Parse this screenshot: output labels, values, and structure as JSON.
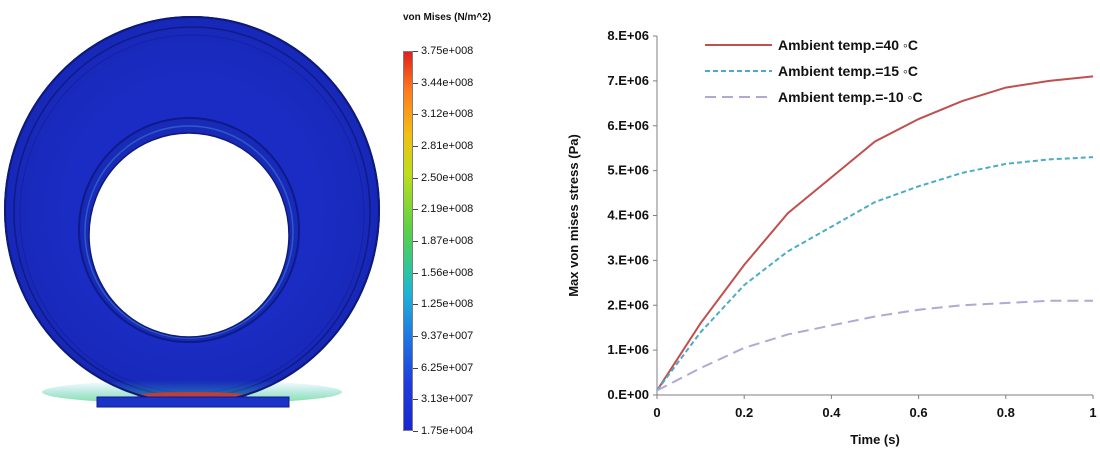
{
  "fea": {
    "title": "von Mises (N/m^2)",
    "colorbar_labels": [
      "3.75e+008",
      "3.44e+008",
      "3.12e+008",
      "2.81e+008",
      "2.50e+008",
      "2.19e+008",
      "1.87e+008",
      "1.56e+008",
      "1.25e+008",
      "9.37e+007",
      "6.25e+007",
      "3.13e+007",
      "1.75e+004"
    ],
    "colors": {
      "ring_main": "#1a2bbf",
      "ring_dark": "#0d1a8a",
      "hot": "#d9382a"
    }
  },
  "chart_data": {
    "type": "line",
    "xlabel": "Time (s)",
    "ylabel": "Max von mises stress (Pa)",
    "xlim": [
      0,
      1
    ],
    "ylim": [
      0,
      8000000
    ],
    "x_tick_labels": [
      "0",
      "0.2",
      "0.4",
      "0.6",
      "0.8",
      "1"
    ],
    "y_tick_labels": [
      "0.E+00",
      "1.E+06",
      "2.E+06",
      "3.E+06",
      "4.E+06",
      "5.E+06",
      "6.E+06",
      "7.E+06",
      "8.E+06"
    ],
    "legend_position": "top-left",
    "series": [
      {
        "name": "Ambient temp.=40 ◦C",
        "color": "#c0504d",
        "dash": "solid",
        "x": [
          0,
          0.1,
          0.2,
          0.3,
          0.4,
          0.5,
          0.6,
          0.7,
          0.8,
          0.9,
          1.0
        ],
        "y": [
          100000,
          1600000,
          2900000,
          4050000,
          4850000,
          5650000,
          6150000,
          6550000,
          6850000,
          7000000,
          7100000
        ]
      },
      {
        "name": "Ambient temp.=15 ◦C",
        "color": "#4bacc6",
        "dash": "dashed",
        "x": [
          0,
          0.1,
          0.2,
          0.3,
          0.4,
          0.5,
          0.6,
          0.7,
          0.8,
          0.9,
          1.0
        ],
        "y": [
          100000,
          1400000,
          2450000,
          3200000,
          3750000,
          4300000,
          4650000,
          4950000,
          5150000,
          5250000,
          5300000
        ]
      },
      {
        "name": "Ambient temp.=-10 ◦C",
        "color": "#b4a7d6",
        "dash": "longdash",
        "x": [
          0,
          0.1,
          0.2,
          0.3,
          0.4,
          0.5,
          0.6,
          0.7,
          0.8,
          0.9,
          1.0
        ],
        "y": [
          100000,
          600000,
          1050000,
          1350000,
          1550000,
          1750000,
          1900000,
          2000000,
          2050000,
          2100000,
          2100000
        ]
      }
    ]
  }
}
